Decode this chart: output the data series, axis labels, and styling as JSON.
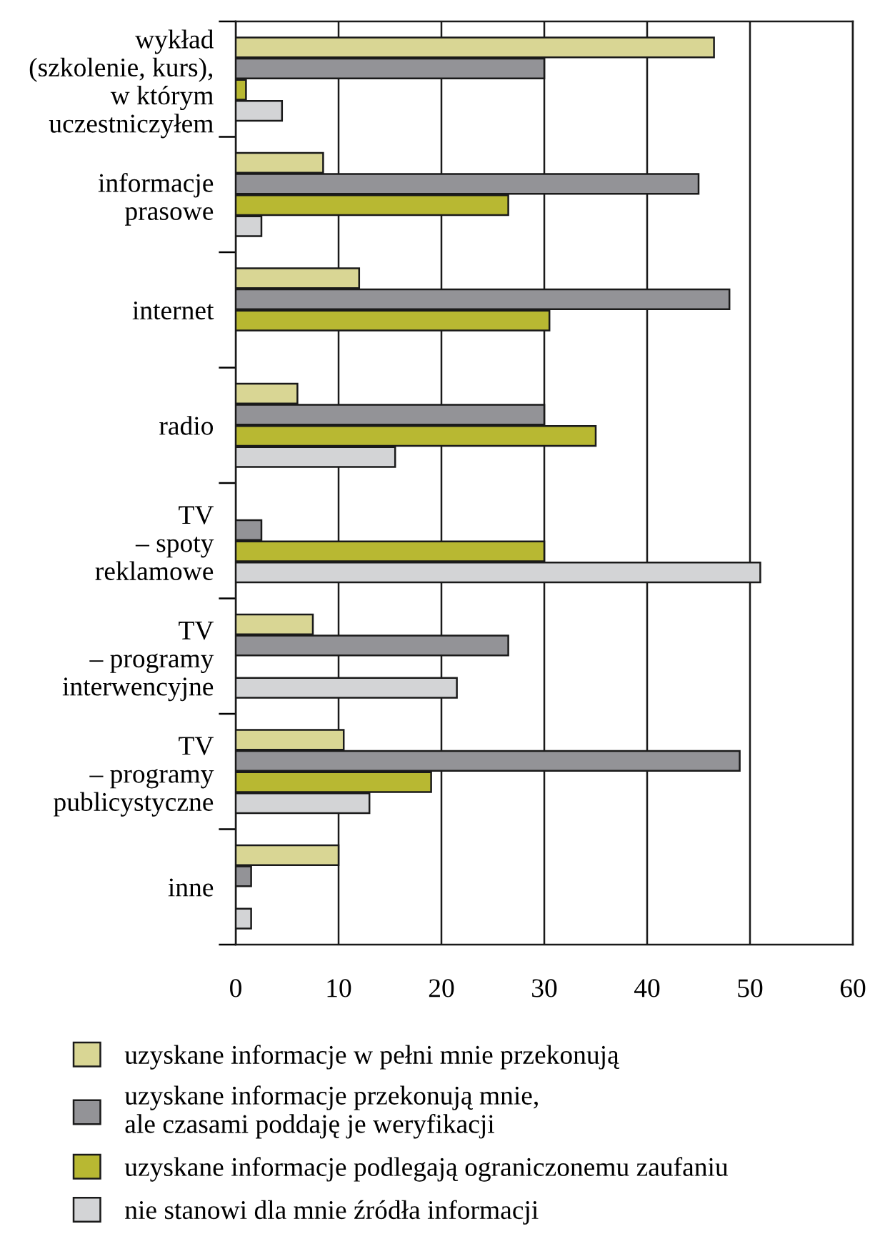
{
  "chart_data": {
    "type": "bar",
    "orientation": "horizontal",
    "categories": [
      "wykład\n(szkolenie, kurs),\nw którym\nuczestniczyłem",
      "informacje\nprasowe",
      "internet",
      "radio",
      "TV\n– spoty\nreklamowe",
      "TV\n– programy\ninterwencyjne",
      "TV\n– programy\npublicystyczne",
      "inne"
    ],
    "series": [
      {
        "name": "uzyskane informacje w pełni mnie przekonują",
        "color": "#d9d694",
        "values": [
          46.5,
          8.5,
          12,
          6,
          null,
          7.5,
          10.5,
          10
        ]
      },
      {
        "name": "uzyskane informacje przekonują mnie,\nale czasami poddaję je weryfikacji",
        "color": "#939397",
        "values": [
          30,
          45,
          48,
          30,
          2.5,
          26.5,
          49,
          1.5
        ]
      },
      {
        "name": "uzyskane informacje podlegają ograniczonemu zaufaniu",
        "color": "#b8b832",
        "values": [
          1,
          26.5,
          30.5,
          35,
          30,
          null,
          19,
          null
        ]
      },
      {
        "name": "nie stanowi dla mnie źródła informacji",
        "color": "#d3d4d6",
        "values": [
          4.5,
          2.5,
          null,
          15.5,
          51,
          21.5,
          13,
          1.5
        ]
      }
    ],
    "xlim": [
      0,
      60
    ],
    "xticks": [
      0,
      10,
      20,
      30,
      40,
      50,
      60
    ],
    "grid": "x",
    "legend": "bottom"
  }
}
